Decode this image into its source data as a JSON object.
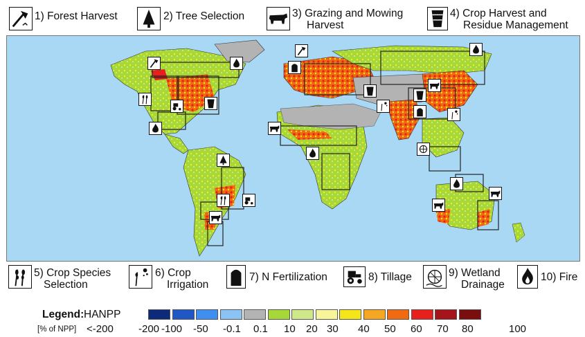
{
  "top_legend": [
    {
      "label": "1) Forest Harvest",
      "icon": "axe-icon"
    },
    {
      "label": "2) Tree Selection",
      "icon": "tree-icon"
    },
    {
      "label_line1": "3) Grazing and Mowing",
      "label_line2": "Harvest",
      "icon": "cow-icon"
    },
    {
      "label_line1": "4) Crop Harvest and",
      "label_line2": "Residue Management",
      "icon": "bucket-icon"
    }
  ],
  "bottom_legend": [
    {
      "label_line1": "5) Crop Species",
      "label_line2": "Selection",
      "icon": "wheat-icon"
    },
    {
      "label_line1": "6) Crop",
      "label_line2": "Irrigation",
      "icon": "irrigation-icon"
    },
    {
      "label": "7) N Fertilization",
      "icon": "fertilizer-silo-icon"
    },
    {
      "label": "8) Tillage",
      "icon": "tractor-icon"
    },
    {
      "label_line1": "9) Wetland",
      "label_line2": "Drainage",
      "icon": "drainage-icon"
    },
    {
      "label": "10) Fire",
      "icon": "fire-icon"
    }
  ],
  "color_legend": {
    "title": "Legend:",
    "variable": "HANPP",
    "unit": "[% of NPP]",
    "ticks": [
      "<-200",
      "-200",
      "-100",
      "-50",
      "-0.1",
      "0.1",
      "10",
      "20",
      "30",
      "40",
      "50",
      "60",
      "70",
      "80",
      "100"
    ],
    "colors": [
      "#0d2a7a",
      "#1f57c4",
      "#3f8ef0",
      "#8cc3f5",
      "#b3b3b3",
      "#a6d83a",
      "#cfe88a",
      "#f7f49a",
      "#f5e61a",
      "#f5a623",
      "#f06a12",
      "#e8201b",
      "#a5141b",
      "#7a0d0d"
    ]
  }
}
